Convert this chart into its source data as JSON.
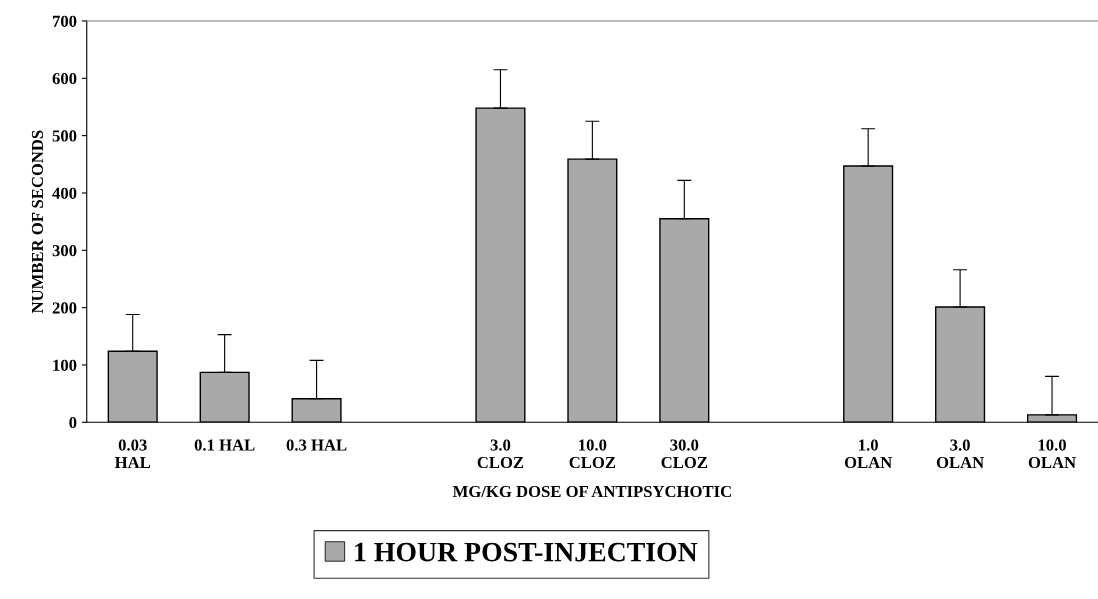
{
  "chart_data": {
    "type": "bar",
    "xlabel": "MG/KG DOSE OF ANTIPSYCHOTIC",
    "ylabel": "NUMBER OF SECONDS",
    "categories": [
      "0.03\nHAL",
      "0.1 HAL",
      "0.3 HAL",
      null,
      "3.0\nCLOZ",
      "10.0\nCLOZ",
      "30.0\nCLOZ",
      null,
      "1.0\nOLAN",
      "3.0\nOLAN",
      "10.0\nOLAN"
    ],
    "series": [
      {
        "name": "1 HOUR POST-INJECTION",
        "color": "#a9a9a9",
        "values": [
          124,
          87,
          41,
          null,
          548,
          459,
          355,
          null,
          447,
          201,
          13
        ],
        "errors": [
          [
            124,
            188
          ],
          [
            87,
            153
          ],
          [
            41,
            108
          ],
          null,
          [
            548,
            615
          ],
          [
            459,
            525
          ],
          [
            355,
            422
          ],
          null,
          [
            447,
            512
          ],
          [
            201,
            266
          ],
          [
            13,
            80
          ]
        ]
      }
    ],
    "ylim": [
      0,
      700
    ],
    "yticks": [
      0,
      100,
      200,
      300,
      400,
      500,
      600,
      700
    ],
    "legend": "bottom"
  }
}
